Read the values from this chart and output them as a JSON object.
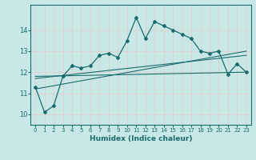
{
  "xlabel": "Humidex (Indice chaleur)",
  "ylabel": "",
  "background_color": "#c8e8e8",
  "grid_color": "#b8d8d8",
  "line_color": "#1a6b6b",
  "xlim": [
    -0.5,
    23.5
  ],
  "ylim": [
    9.5,
    15.2
  ],
  "yticks": [
    10,
    11,
    12,
    13,
    14
  ],
  "xticks": [
    0,
    1,
    2,
    3,
    4,
    5,
    6,
    7,
    8,
    9,
    10,
    11,
    12,
    13,
    14,
    15,
    16,
    17,
    18,
    19,
    20,
    21,
    22,
    23
  ],
  "main_series_x": [
    0,
    1,
    2,
    3,
    4,
    5,
    6,
    7,
    8,
    9,
    10,
    11,
    12,
    13,
    14,
    15,
    16,
    17,
    18,
    19,
    20,
    21,
    22,
    23
  ],
  "main_series_y": [
    11.3,
    10.1,
    10.4,
    11.8,
    12.3,
    12.2,
    12.3,
    12.8,
    12.9,
    12.7,
    13.5,
    14.6,
    13.6,
    14.4,
    14.2,
    14.0,
    13.8,
    13.6,
    13.0,
    12.9,
    13.0,
    11.9,
    12.4,
    12.0
  ],
  "line1_x": [
    0,
    23
  ],
  "line1_y": [
    11.8,
    12.0
  ],
  "line2_x": [
    0,
    23
  ],
  "line2_y": [
    11.7,
    12.8
  ],
  "line3_x": [
    0,
    23
  ],
  "line3_y": [
    11.2,
    13.0
  ]
}
